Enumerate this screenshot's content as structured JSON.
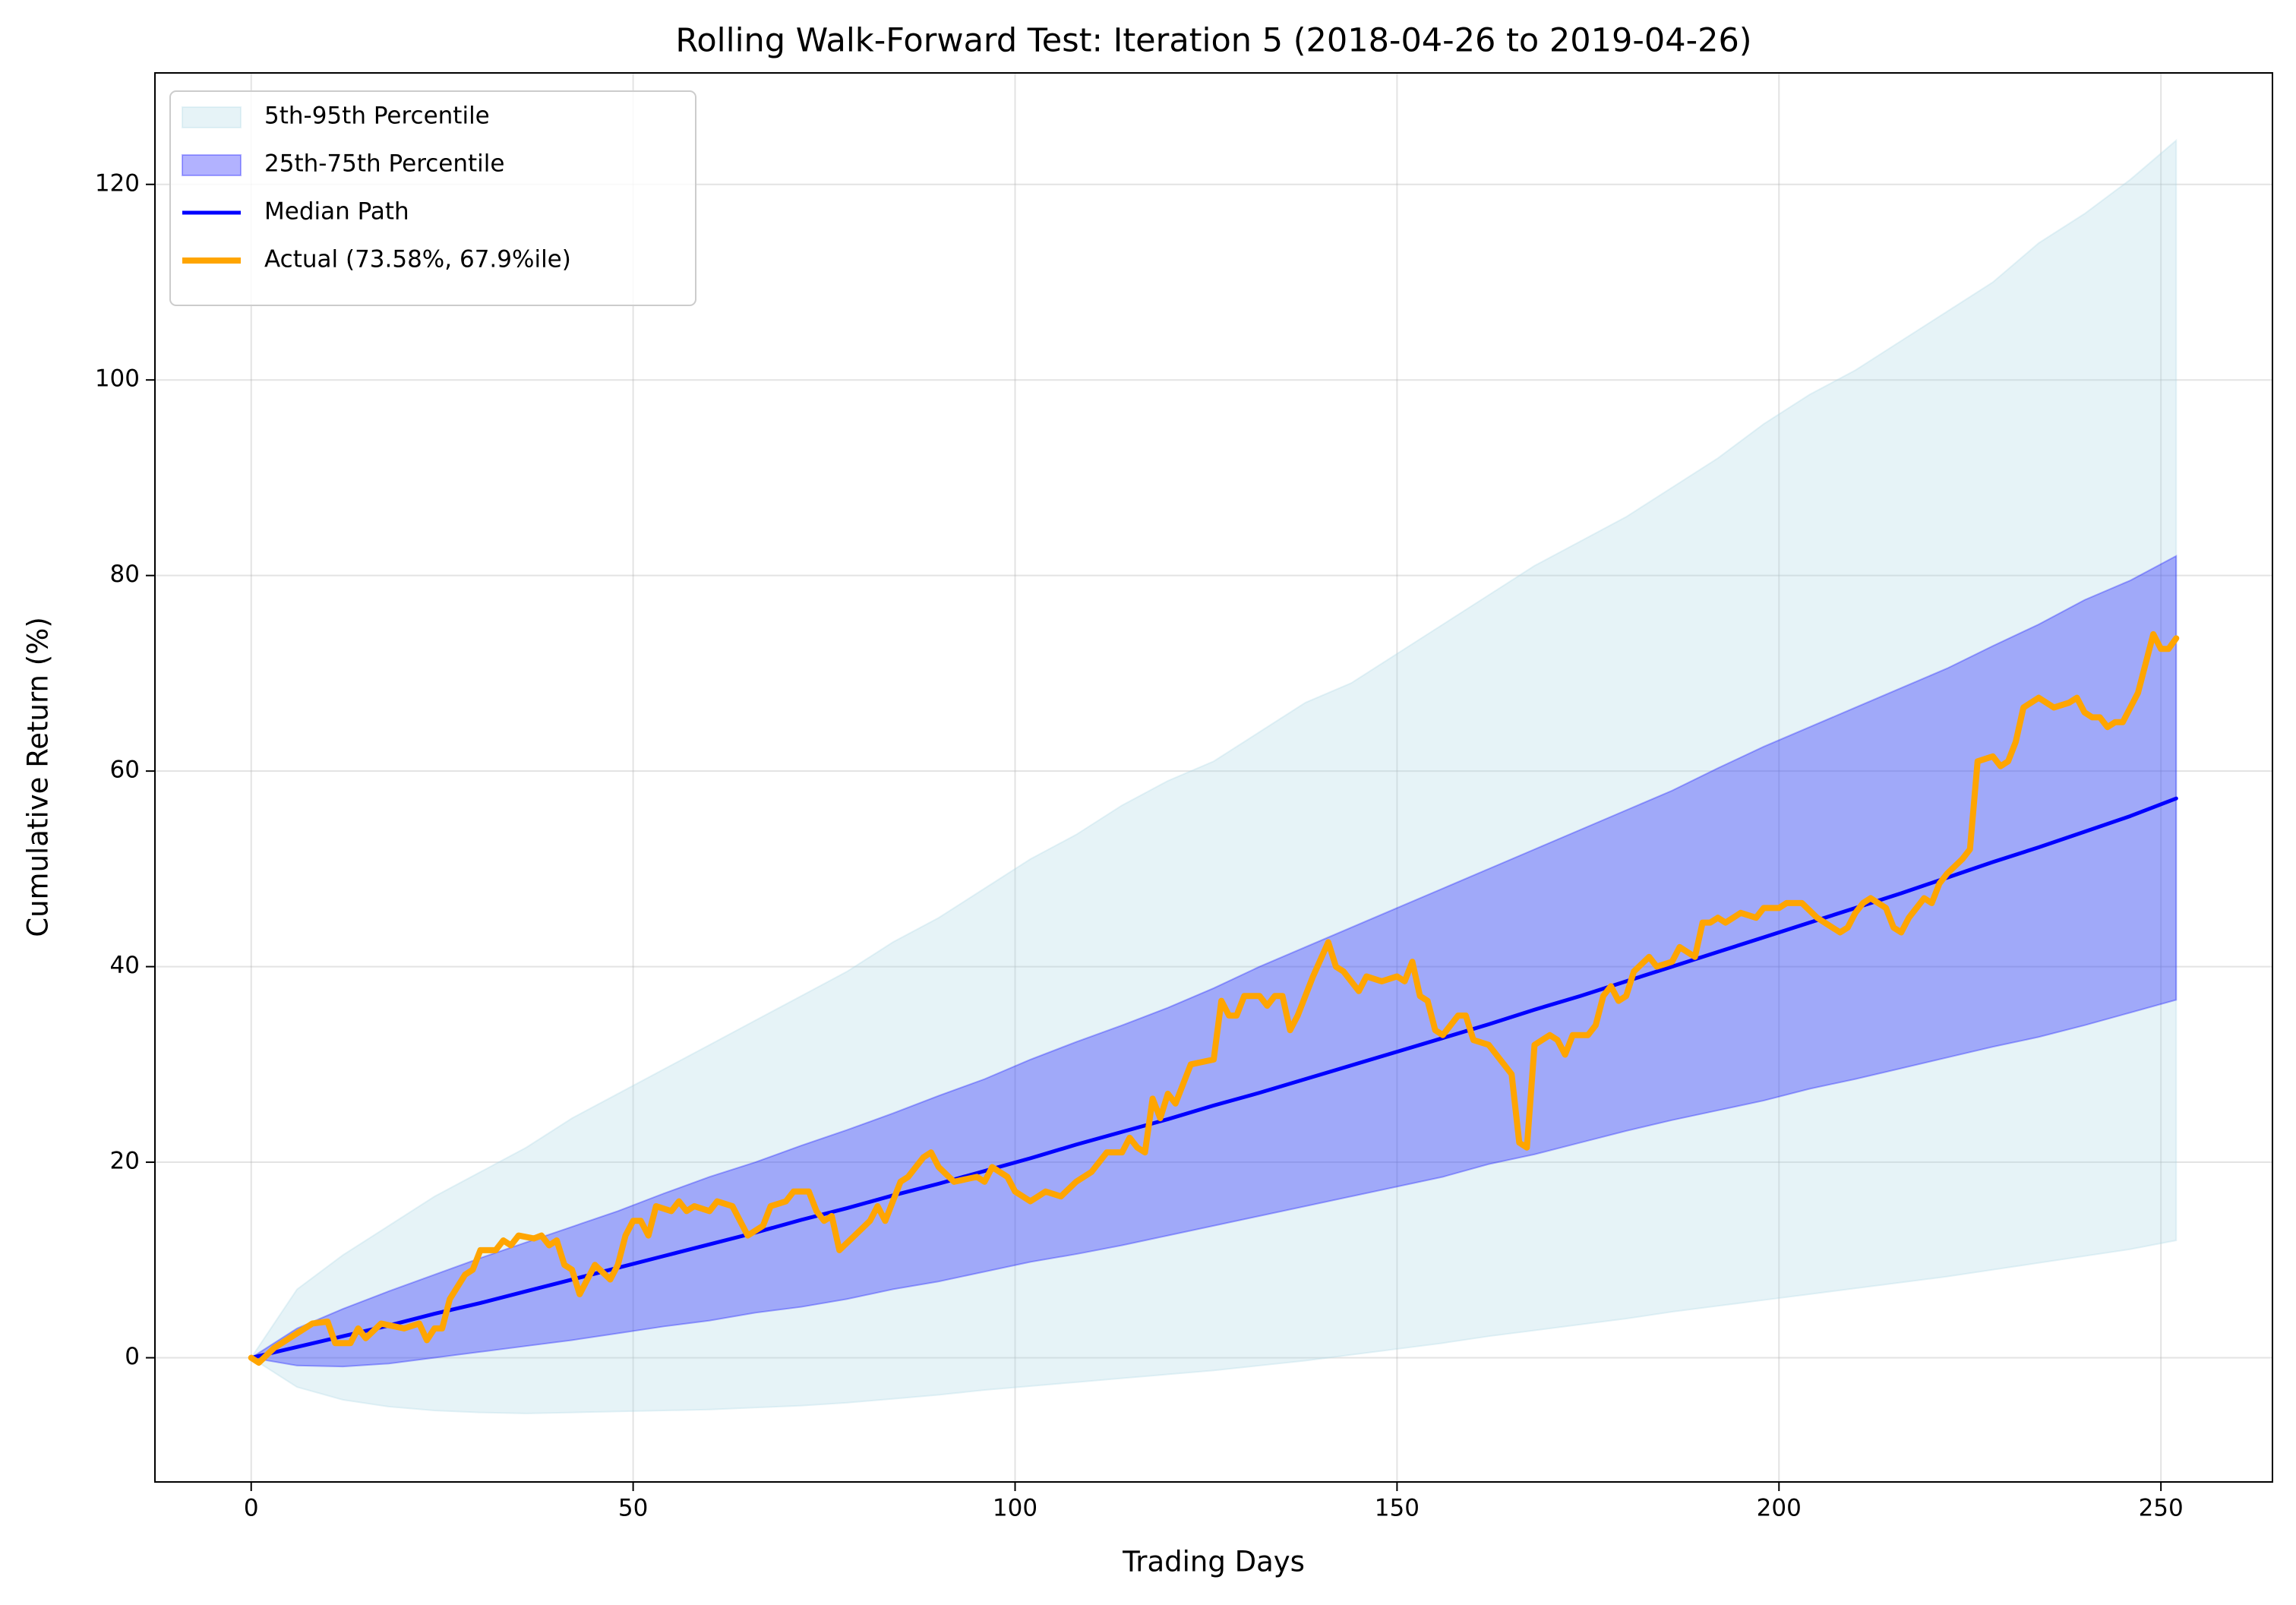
{
  "chart_data": {
    "type": "fan",
    "title": "Rolling Walk-Forward Test: Iteration 5 (2018-04-26 to 2019-04-26)",
    "x_label": "Trading Days",
    "y_label": "Cumulative Return (%)",
    "xlim": [
      -12.6,
      264.6
    ],
    "ylim": [
      -12.7,
      131.4
    ],
    "xticks": [
      0,
      50,
      100,
      150,
      200,
      250
    ],
    "yticks": [
      0,
      20,
      40,
      60,
      80,
      100,
      120
    ],
    "grid": true,
    "legend": "upper left",
    "x": [
      0,
      6,
      12,
      18,
      24,
      30,
      36,
      42,
      48,
      54,
      60,
      66,
      72,
      78,
      84,
      90,
      96,
      102,
      108,
      114,
      120,
      126,
      132,
      138,
      144,
      150,
      156,
      162,
      168,
      174,
      180,
      186,
      192,
      198,
      204,
      210,
      216,
      222,
      228,
      234,
      240,
      246,
      252
    ],
    "series": [
      {
        "name": "5th-95th Percentile",
        "kind": "band",
        "color": "#add8e6",
        "lower": [
          0,
          -3,
          -4.3,
          -5,
          -5.4,
          -5.6,
          -5.7,
          -5.6,
          -5.5,
          -5.4,
          -5.3,
          -5.1,
          -4.9,
          -4.6,
          -4.2,
          -3.8,
          -3.3,
          -2.9,
          -2.5,
          -2.1,
          -1.7,
          -1.3,
          -0.8,
          -0.3,
          0.3,
          0.9,
          1.5,
          2.2,
          2.8,
          3.4,
          4,
          4.7,
          5.3,
          5.9,
          6.5,
          7.1,
          7.7,
          8.3,
          9,
          9.7,
          10.4,
          11.1,
          12
        ],
        "upper": [
          0,
          7,
          10.5,
          13.5,
          16.5,
          19,
          21.5,
          24.5,
          27,
          29.5,
          32,
          34.5,
          37,
          39.5,
          42.5,
          45,
          48,
          51,
          53.5,
          56.5,
          59,
          61,
          64,
          67,
          69,
          72,
          75,
          78,
          81,
          83.5,
          86,
          89,
          92,
          95.5,
          98.5,
          101,
          104,
          107,
          110,
          114,
          117,
          120.5,
          124.5
        ]
      },
      {
        "name": "25th-75th Percentile",
        "kind": "band",
        "color": "#0000ff",
        "lower": [
          0,
          -0.8,
          -0.9,
          -0.6,
          0,
          0.6,
          1.2,
          1.8,
          2.5,
          3.2,
          3.8,
          4.6,
          5.2,
          6,
          7,
          7.8,
          8.8,
          9.8,
          10.6,
          11.5,
          12.5,
          13.5,
          14.5,
          15.5,
          16.5,
          17.5,
          18.5,
          19.8,
          20.8,
          22,
          23.2,
          24.3,
          25.3,
          26.3,
          27.5,
          28.5,
          29.6,
          30.7,
          31.8,
          32.8,
          34,
          35.3,
          36.6
        ],
        "upper": [
          0,
          3,
          5,
          6.8,
          8.5,
          10.2,
          11.8,
          13.4,
          15,
          16.8,
          18.5,
          20,
          21.7,
          23.3,
          25,
          26.8,
          28.5,
          30.5,
          32.3,
          34,
          35.8,
          37.8,
          40,
          42,
          44,
          46,
          48,
          50,
          52,
          54,
          56,
          58,
          60.3,
          62.5,
          64.5,
          66.5,
          68.5,
          70.5,
          72.8,
          75,
          77.5,
          79.5,
          82
        ]
      },
      {
        "name": "Median Path",
        "kind": "line",
        "color": "#0000ff",
        "values": [
          0,
          1.1,
          2.2,
          3.3,
          4.5,
          5.6,
          6.8,
          8,
          9.2,
          10.4,
          11.6,
          12.8,
          14.1,
          15.3,
          16.6,
          17.8,
          19.1,
          20.4,
          21.8,
          23.1,
          24.4,
          25.8,
          27.1,
          28.5,
          29.9,
          31.3,
          32.7,
          34.1,
          35.6,
          37,
          38.5,
          40,
          41.5,
          43,
          44.5,
          46,
          47.5,
          49.1,
          50.7,
          52.2,
          53.8,
          55.4,
          57.2
        ]
      },
      {
        "name": "Actual (73.58%, 67.9%ile)",
        "kind": "line",
        "color": "#ffa500",
        "x": [
          0,
          1,
          3,
          6,
          8,
          10,
          11,
          13,
          14,
          15,
          17,
          20,
          22,
          23,
          24,
          25,
          26,
          28,
          29,
          30,
          32,
          33,
          34,
          35,
          37,
          38,
          39,
          40,
          41,
          42,
          43,
          44,
          45,
          47,
          48,
          49,
          50,
          51,
          52,
          53,
          55,
          56,
          57,
          58,
          60,
          61,
          63,
          64,
          65,
          67,
          68,
          70,
          71,
          73,
          74,
          75,
          76,
          77,
          79,
          81,
          82,
          83,
          84,
          85,
          86,
          88,
          89,
          90,
          92,
          95,
          96,
          97,
          99,
          100,
          102,
          103,
          104,
          106,
          108,
          110,
          112,
          114,
          115,
          116,
          117,
          118,
          119,
          120,
          121,
          123,
          126,
          127,
          128,
          129,
          130,
          132,
          133,
          134,
          135,
          136,
          137,
          139,
          141,
          142,
          143,
          145,
          146,
          148,
          150,
          151,
          152,
          153,
          154,
          155,
          156,
          157,
          158,
          159,
          160,
          162,
          163,
          164,
          165,
          166,
          167,
          168,
          170,
          171,
          172,
          173,
          175,
          176,
          177,
          178,
          179,
          180,
          181,
          183,
          184,
          186,
          187,
          189,
          190,
          191,
          192,
          193,
          195,
          197,
          198,
          200,
          201,
          203,
          205,
          208,
          209,
          210,
          211,
          212,
          214,
          215,
          216,
          217,
          219,
          220,
          221,
          222,
          224,
          225,
          226,
          228,
          229,
          230,
          231,
          232,
          234,
          236,
          238,
          239,
          240,
          241,
          242,
          243,
          244,
          245,
          246,
          247,
          248,
          249,
          250,
          251,
          252
        ],
        "values": [
          0,
          -0.5,
          1,
          2.5,
          3.5,
          3.7,
          1.5,
          1.5,
          3,
          2,
          3.5,
          3,
          3.5,
          1.8,
          3,
          3,
          6,
          8.5,
          9,
          11,
          11,
          12,
          11.5,
          12.5,
          12.2,
          12.5,
          11.5,
          12,
          9.5,
          9,
          6.5,
          8,
          9.5,
          8,
          9.5,
          12.5,
          14,
          14,
          12.5,
          15.5,
          15,
          16,
          15,
          15.5,
          15,
          16,
          15.5,
          14,
          12.5,
          13.5,
          15.5,
          16,
          17,
          17,
          15,
          14,
          14.5,
          11,
          12.5,
          14,
          15.5,
          14,
          16,
          18,
          18.5,
          20.5,
          21,
          19.5,
          18,
          18.5,
          18,
          19.5,
          18.5,
          17,
          16,
          16.5,
          17,
          16.5,
          18,
          19,
          21,
          21,
          22.5,
          21.5,
          21,
          26.5,
          24.5,
          27,
          26,
          30,
          30.5,
          36.5,
          35,
          35,
          37,
          37,
          36,
          37,
          37,
          33.5,
          35,
          39,
          42.5,
          40,
          39.5,
          37.5,
          39,
          38.5,
          39,
          38.5,
          40.5,
          37,
          36.5,
          33.5,
          33,
          34,
          35,
          35,
          32.5,
          32,
          31,
          30,
          29,
          22,
          21.5,
          32,
          33,
          32.5,
          31,
          33,
          33,
          34,
          37,
          38,
          36.5,
          37,
          39.5,
          41,
          40,
          40.5,
          42,
          41,
          44.5,
          44.5,
          45,
          44.5,
          45.5,
          45,
          46,
          46,
          46.5,
          46.5,
          45,
          43.5,
          44,
          45.5,
          46.5,
          47,
          46,
          44,
          43.5,
          45,
          47,
          46.5,
          48.5,
          49.5,
          51,
          52,
          61,
          61.5,
          60.5,
          61,
          63,
          66.5,
          67.5,
          66.5,
          67,
          67.5,
          66,
          65.5,
          65.5,
          64.5,
          65,
          65,
          66.5,
          68,
          71,
          74,
          72.5,
          72.5,
          73.58
        ]
      }
    ]
  }
}
